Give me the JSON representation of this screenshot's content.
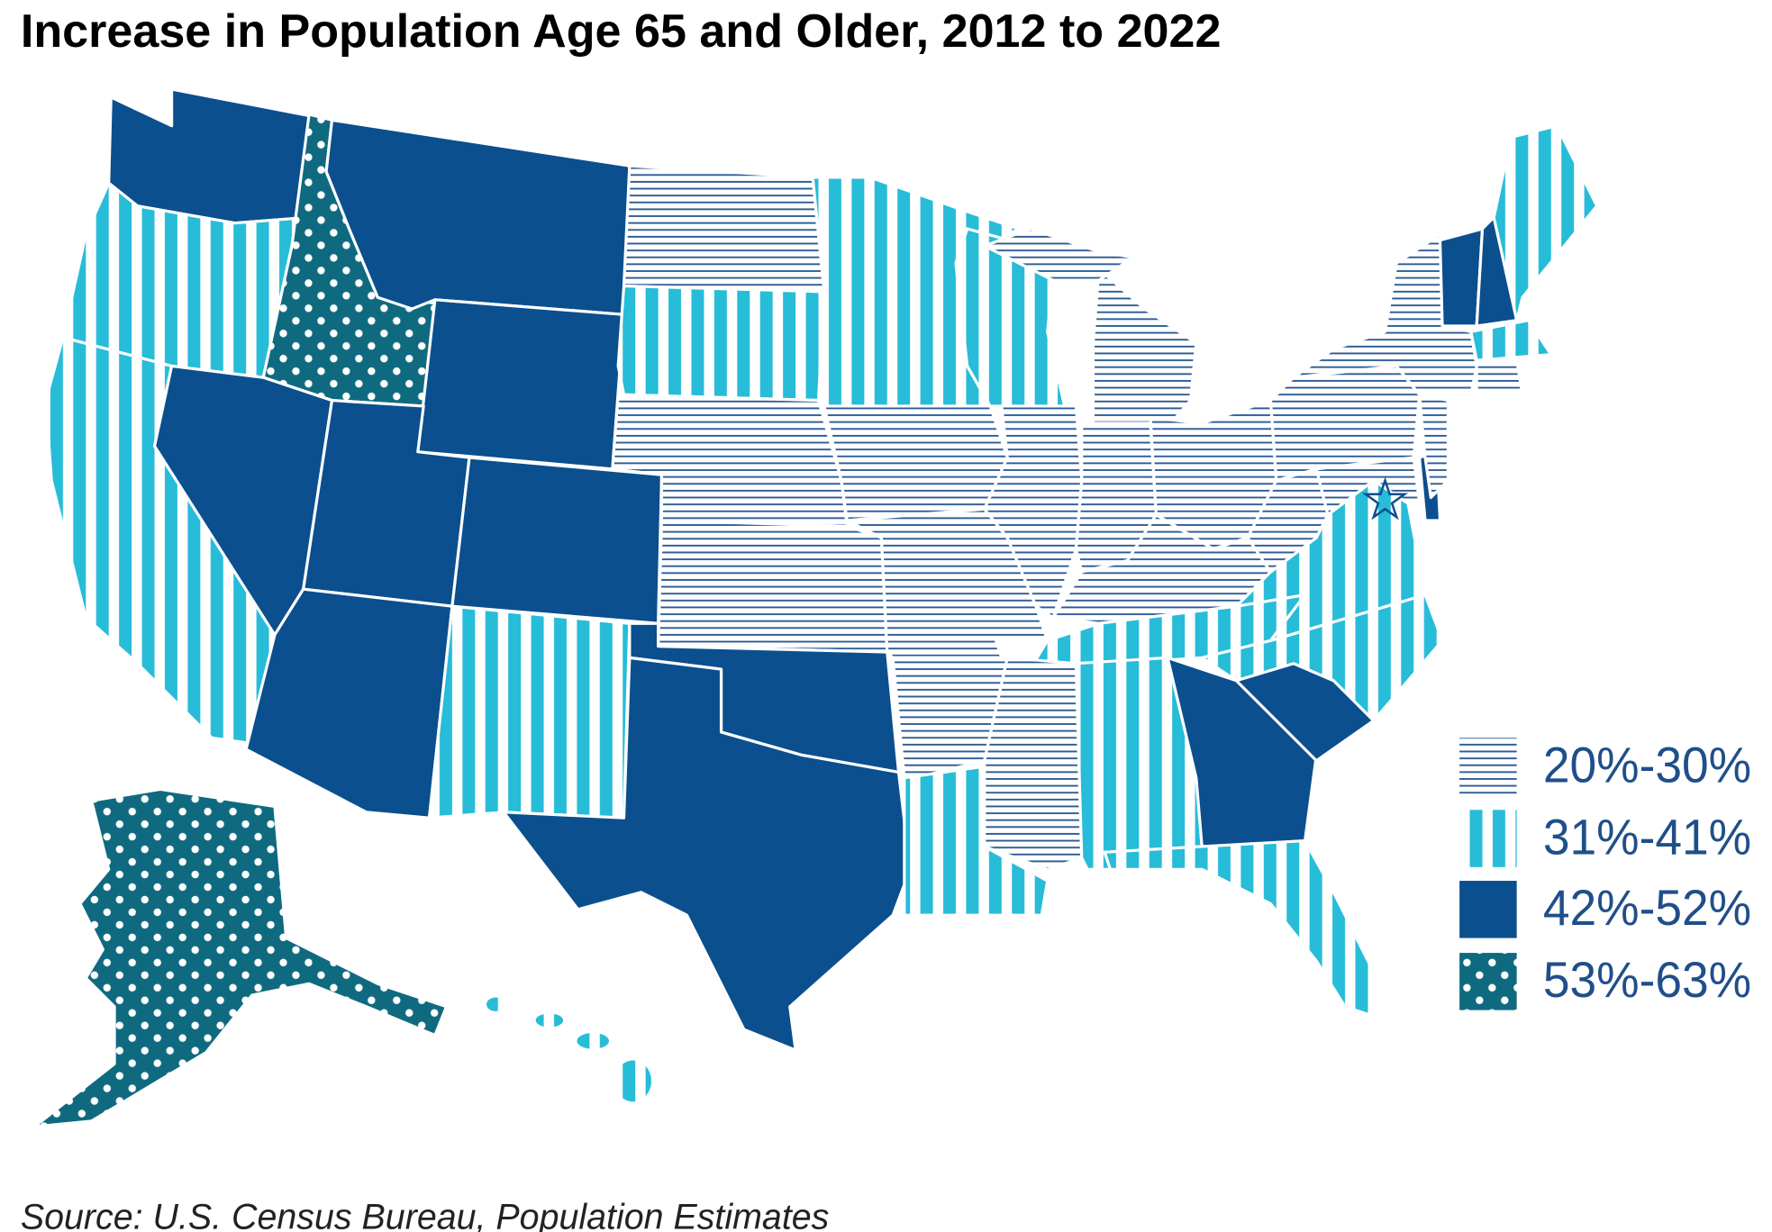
{
  "title": "Increase in Population Age 65 and Older, 2012 to 2022",
  "legend": {
    "items": [
      {
        "label": "20%-30%",
        "color": "#2c5b95",
        "pattern": "horizontal-lines"
      },
      {
        "label": "31%-41%",
        "color": "#27bcd8",
        "pattern": "vertical-stripes"
      },
      {
        "label": "42%-52%",
        "color": "#0b4f8e",
        "pattern": "solid"
      },
      {
        "label": "53%-63%",
        "color": "#0f6a80",
        "pattern": "dots"
      }
    ]
  },
  "source": "Source: U.S. Census Bureau, Population Estimates"
}
